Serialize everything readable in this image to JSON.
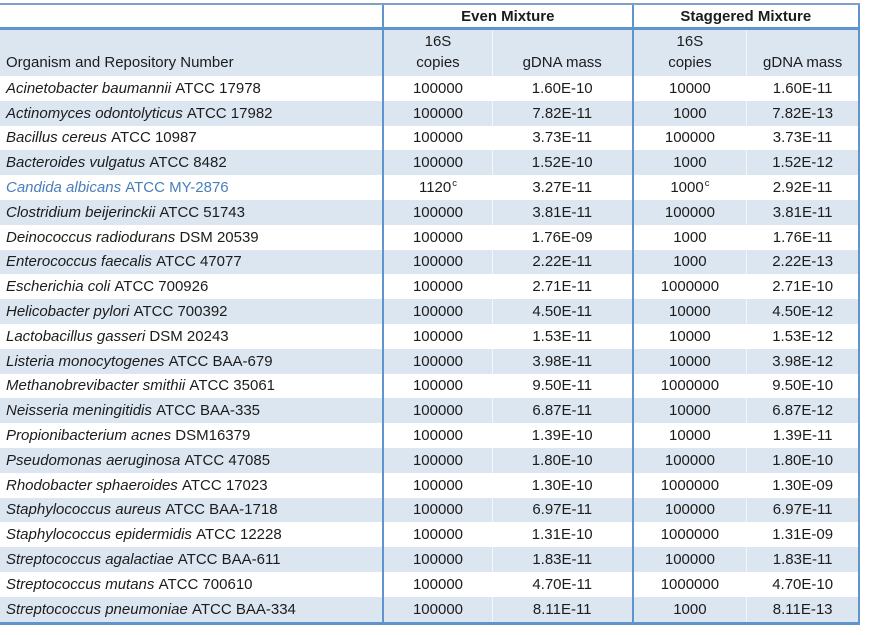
{
  "header": {
    "even_group": "Even Mixture",
    "staggered_group": "Staggered Mixture",
    "organism": "Organism and Repository Number",
    "s16": "16S",
    "copies": "copies",
    "gdna": "gDNA mass"
  },
  "colors": {
    "row_stripe": "#dce6f1",
    "border_blue": "#5f94cd",
    "highlight_text_blue": "#4a7ebb",
    "text": "#1c1c1c"
  },
  "rows": [
    {
      "species": "Acinetobacter baumannii",
      "strain": "ATCC 17978",
      "even_copies": "100000",
      "even_sup": "",
      "even_gdna": "1.60E-10",
      "stag_copies": "10000",
      "stag_sup": "",
      "stag_gdna": "1.60E-11",
      "highlight": false
    },
    {
      "species": "Actinomyces odontolyticus",
      "strain": "ATCC 17982",
      "even_copies": "100000",
      "even_sup": "",
      "even_gdna": "7.82E-11",
      "stag_copies": "1000",
      "stag_sup": "",
      "stag_gdna": "7.82E-13",
      "highlight": false
    },
    {
      "species": "Bacillus cereus",
      "strain": "ATCC 10987",
      "even_copies": "100000",
      "even_sup": "",
      "even_gdna": "3.73E-11",
      "stag_copies": "100000",
      "stag_sup": "",
      "stag_gdna": "3.73E-11",
      "highlight": false
    },
    {
      "species": "Bacteroides vulgatus",
      "strain": "ATCC 8482",
      "even_copies": "100000",
      "even_sup": "",
      "even_gdna": "1.52E-10",
      "stag_copies": "1000",
      "stag_sup": "",
      "stag_gdna": "1.52E-12",
      "highlight": false
    },
    {
      "species": "Candida albicans",
      "strain": "ATCC MY-2876",
      "even_copies": "1120",
      "even_sup": "c",
      "even_gdna": "3.27E-11",
      "stag_copies": "1000",
      "stag_sup": "c",
      "stag_gdna": "2.92E-11",
      "highlight": true
    },
    {
      "species": "Clostridium beijerinckii",
      "strain": "ATCC 51743",
      "even_copies": "100000",
      "even_sup": "",
      "even_gdna": "3.81E-11",
      "stag_copies": "100000",
      "stag_sup": "",
      "stag_gdna": "3.81E-11",
      "highlight": false
    },
    {
      "species": "Deinococcus radiodurans",
      "strain": "DSM 20539",
      "even_copies": "100000",
      "even_sup": "",
      "even_gdna": "1.76E-09",
      "stag_copies": "1000",
      "stag_sup": "",
      "stag_gdna": "1.76E-11",
      "highlight": false
    },
    {
      "species": "Enterococcus faecalis",
      "strain": "ATCC 47077",
      "even_copies": "100000",
      "even_sup": "",
      "even_gdna": "2.22E-11",
      "stag_copies": "1000",
      "stag_sup": "",
      "stag_gdna": "2.22E-13",
      "highlight": false
    },
    {
      "species": "Escherichia coli",
      "strain": "ATCC 700926",
      "even_copies": "100000",
      "even_sup": "",
      "even_gdna": "2.71E-11",
      "stag_copies": "1000000",
      "stag_sup": "",
      "stag_gdna": "2.71E-10",
      "highlight": false
    },
    {
      "species": "Helicobacter pylori",
      "strain": "ATCC 700392",
      "even_copies": "100000",
      "even_sup": "",
      "even_gdna": "4.50E-11",
      "stag_copies": "10000",
      "stag_sup": "",
      "stag_gdna": "4.50E-12",
      "highlight": false
    },
    {
      "species": "Lactobacillus gasseri",
      "strain": "DSM 20243",
      "even_copies": "100000",
      "even_sup": "",
      "even_gdna": "1.53E-11",
      "stag_copies": "10000",
      "stag_sup": "",
      "stag_gdna": "1.53E-12",
      "highlight": false
    },
    {
      "species": "Listeria monocytogenes",
      "strain": "ATCC BAA-679",
      "even_copies": "100000",
      "even_sup": "",
      "even_gdna": "3.98E-11",
      "stag_copies": "10000",
      "stag_sup": "",
      "stag_gdna": "3.98E-12",
      "highlight": false
    },
    {
      "species": "Methanobrevibacter smithii",
      "strain": "ATCC 35061",
      "even_copies": "100000",
      "even_sup": "",
      "even_gdna": "9.50E-11",
      "stag_copies": "1000000",
      "stag_sup": "",
      "stag_gdna": "9.50E-10",
      "highlight": false
    },
    {
      "species": "Neisseria meningitidis",
      "strain": "ATCC BAA-335",
      "even_copies": "100000",
      "even_sup": "",
      "even_gdna": "6.87E-11",
      "stag_copies": "10000",
      "stag_sup": "",
      "stag_gdna": "6.87E-12",
      "highlight": false
    },
    {
      "species": "Propionibacterium acnes",
      "strain": "DSM16379",
      "even_copies": "100000",
      "even_sup": "",
      "even_gdna": "1.39E-10",
      "stag_copies": "10000",
      "stag_sup": "",
      "stag_gdna": "1.39E-11",
      "highlight": false
    },
    {
      "species": "Pseudomonas aeruginosa",
      "strain": "ATCC 47085",
      "even_copies": "100000",
      "even_sup": "",
      "even_gdna": "1.80E-10",
      "stag_copies": "100000",
      "stag_sup": "",
      "stag_gdna": "1.80E-10",
      "highlight": false
    },
    {
      "species": "Rhodobacter sphaeroides",
      "strain": "ATCC 17023",
      "even_copies": "100000",
      "even_sup": "",
      "even_gdna": "1.30E-10",
      "stag_copies": "1000000",
      "stag_sup": "",
      "stag_gdna": "1.30E-09",
      "highlight": false
    },
    {
      "species": "Staphylococcus aureus",
      "strain": "ATCC BAA-1718",
      "even_copies": "100000",
      "even_sup": "",
      "even_gdna": "6.97E-11",
      "stag_copies": "100000",
      "stag_sup": "",
      "stag_gdna": "6.97E-11",
      "highlight": false
    },
    {
      "species": "Staphylococcus epidermidis",
      "strain": "ATCC 12228",
      "even_copies": "100000",
      "even_sup": "",
      "even_gdna": "1.31E-10",
      "stag_copies": "1000000",
      "stag_sup": "",
      "stag_gdna": "1.31E-09",
      "highlight": false
    },
    {
      "species": "Streptococcus agalactiae",
      "strain": "ATCC BAA-611",
      "even_copies": "100000",
      "even_sup": "",
      "even_gdna": "1.83E-11",
      "stag_copies": "100000",
      "stag_sup": "",
      "stag_gdna": "1.83E-11",
      "highlight": false
    },
    {
      "species": "Streptococcus mutans",
      "strain": "ATCC 700610",
      "even_copies": "100000",
      "even_sup": "",
      "even_gdna": "4.70E-11",
      "stag_copies": "1000000",
      "stag_sup": "",
      "stag_gdna": "4.70E-10",
      "highlight": false
    },
    {
      "species": "Streptococcus pneumoniae",
      "strain": "ATCC BAA-334",
      "even_copies": "100000",
      "even_sup": "",
      "even_gdna": "8.11E-11",
      "stag_copies": "1000",
      "stag_sup": "",
      "stag_gdna": "8.11E-13",
      "highlight": false
    }
  ]
}
